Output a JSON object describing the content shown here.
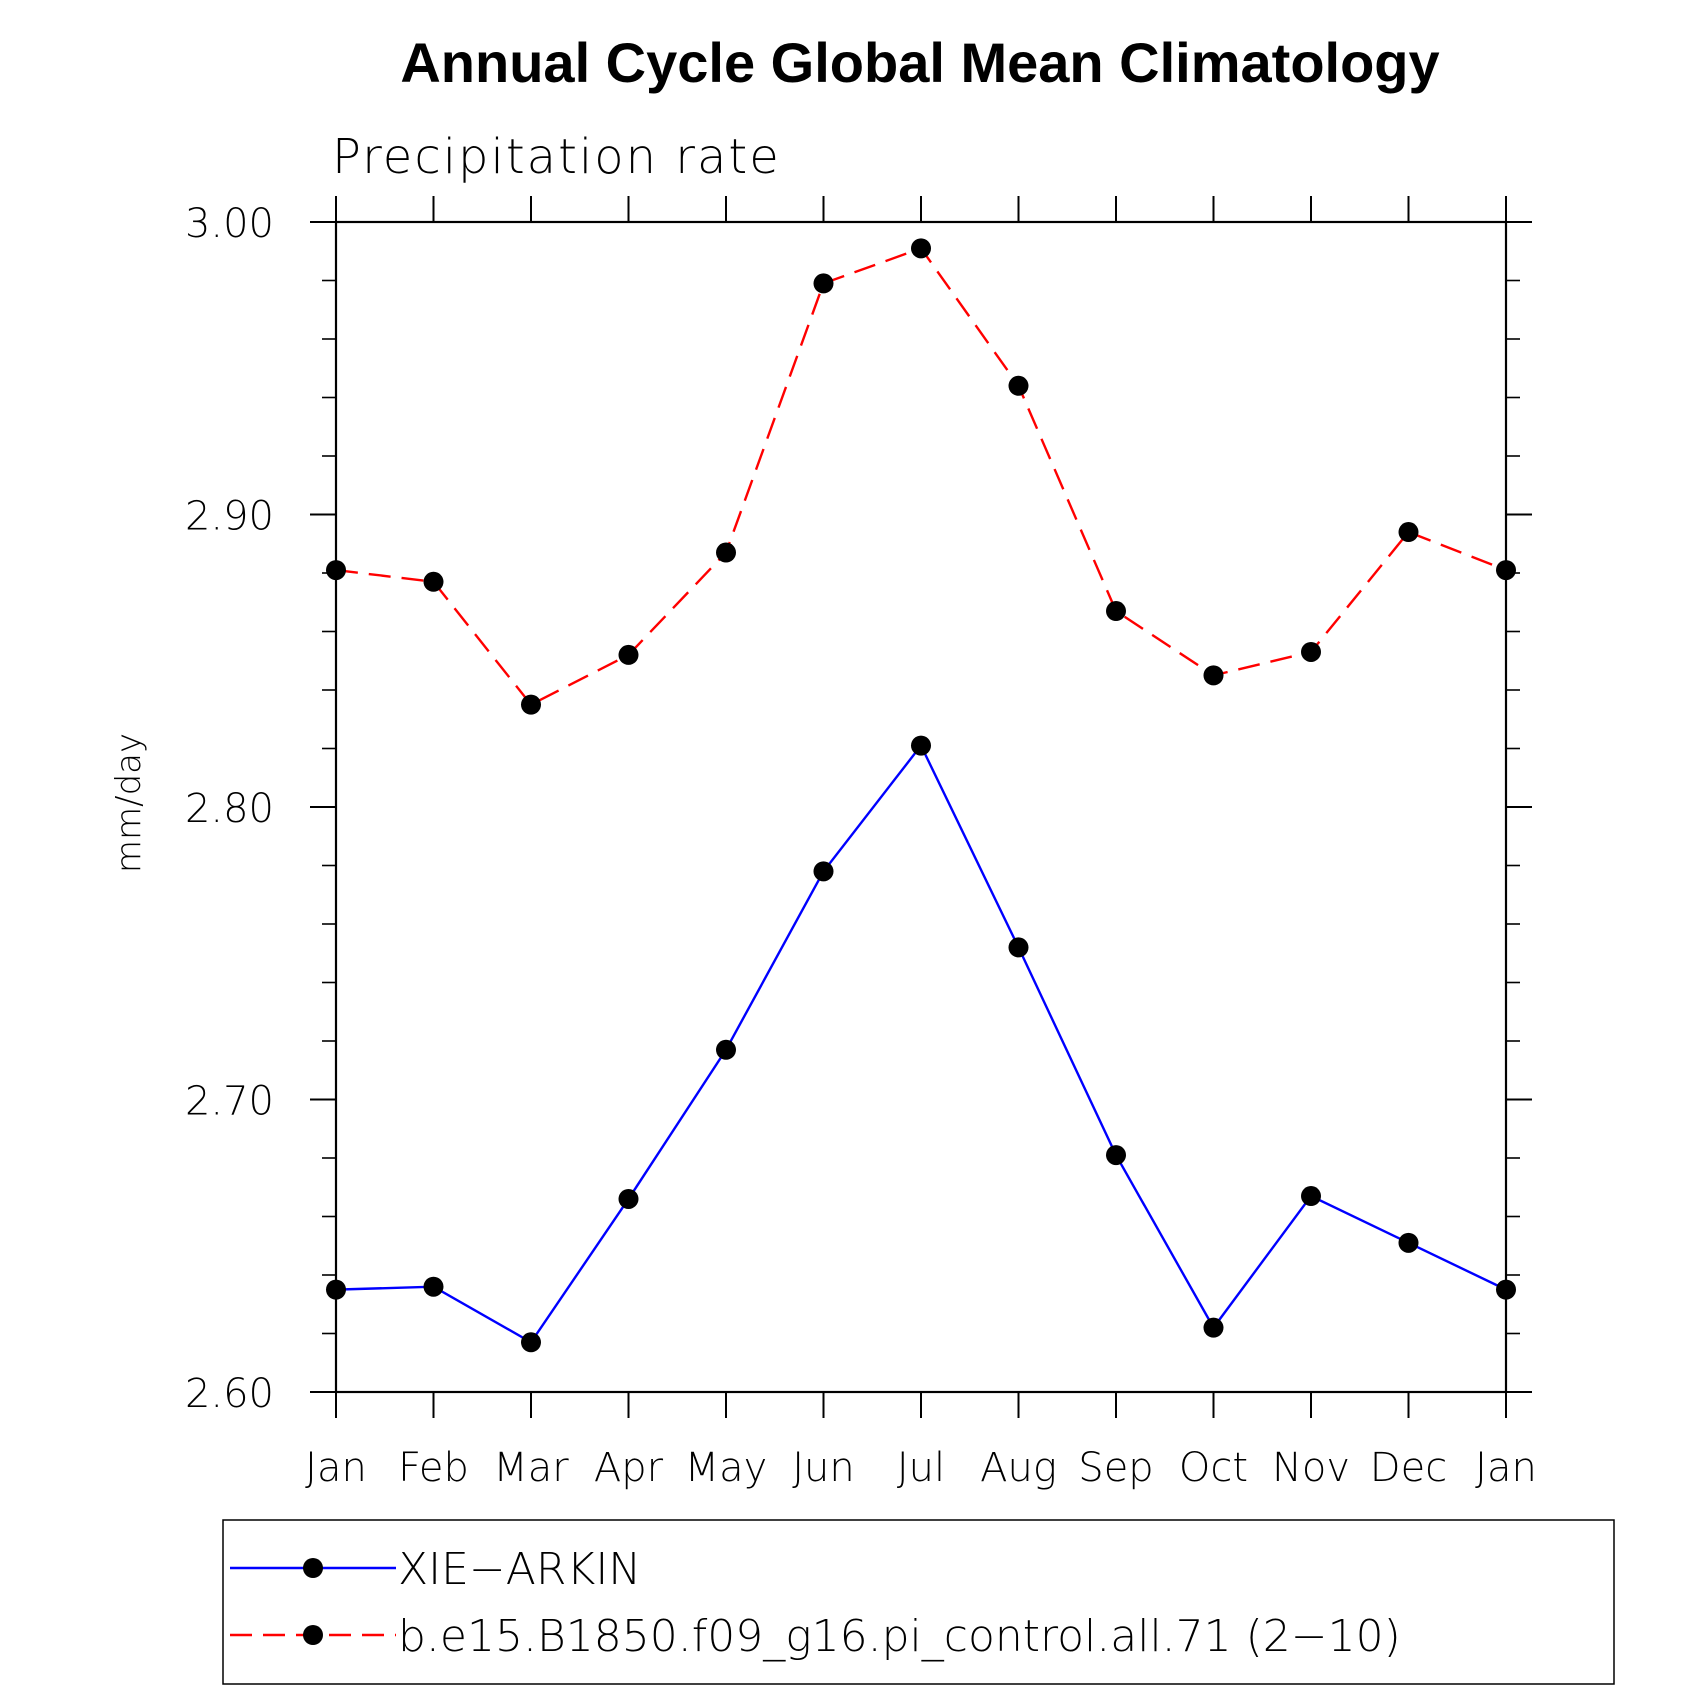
{
  "chart_data": {
    "type": "line",
    "title": "Annual Cycle Global Mean Climatology",
    "subtitle": "Precipitation rate",
    "xlabel": "",
    "ylabel": "mm/day",
    "categories": [
      "Jan",
      "Feb",
      "Mar",
      "Apr",
      "May",
      "Jun",
      "Jul",
      "Aug",
      "Sep",
      "Oct",
      "Nov",
      "Dec",
      "Jan"
    ],
    "ylim": [
      2.6,
      3.0
    ],
    "yticks": [
      2.6,
      2.7,
      2.8,
      2.9,
      3.0
    ],
    "ytick_labels": [
      "2.60",
      "2.70",
      "2.80",
      "2.90",
      "3.00"
    ],
    "y_minor_step": 0.02,
    "grid": false,
    "legend_position": "bottom",
    "series": [
      {
        "name": "XIE−ARKIN",
        "color": "#0000ff",
        "line_style": "solid",
        "marker": "filled-circle",
        "values": [
          2.635,
          2.636,
          2.617,
          2.666,
          2.717,
          2.778,
          2.821,
          2.752,
          2.681,
          2.622,
          2.667,
          2.651,
          2.635
        ]
      },
      {
        "name": "b.e15.B1850.f09_g16.pi_control.all.71 (2−10)",
        "color": "#ff0000",
        "line_style": "dashed",
        "marker": "filled-circle",
        "values": [
          2.881,
          2.877,
          2.835,
          2.852,
          2.887,
          2.979,
          2.991,
          2.944,
          2.867,
          2.845,
          2.853,
          2.894,
          2.881
        ]
      }
    ]
  }
}
